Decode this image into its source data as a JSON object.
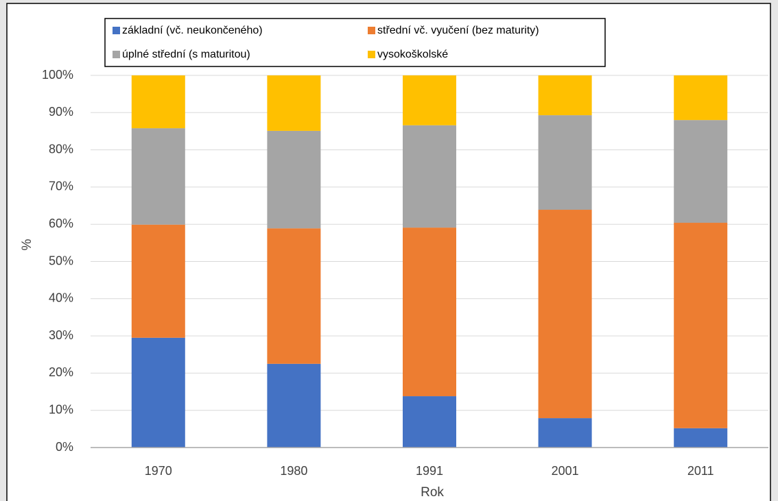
{
  "chart_data": {
    "type": "stacked-bar",
    "x_label": "Rok",
    "y_label": "%",
    "categories": [
      "1970",
      "1980",
      "1991",
      "2001",
      "2011"
    ],
    "series": [
      {
        "name": "základní (vč. neukončeného)",
        "color": "#4472c4",
        "values": [
          29.5,
          22.5,
          13.8,
          7.9,
          5.2
        ]
      },
      {
        "name": "střední vč. vyučení (bez maturity)",
        "color": "#ed7d31",
        "values": [
          30.4,
          36.4,
          45.3,
          56.0,
          55.2
        ]
      },
      {
        "name": "úplné střední (s maturitou)",
        "color": "#a5a5a5",
        "values": [
          25.9,
          26.2,
          27.5,
          25.4,
          27.6
        ]
      },
      {
        "name": "vysokoškolské",
        "color": "#ffc000",
        "values": [
          14.2,
          14.9,
          13.4,
          10.7,
          12.0
        ]
      }
    ],
    "ylim": [
      0,
      100
    ],
    "yticks": [
      {
        "value": 0,
        "label": "0%"
      },
      {
        "value": 10,
        "label": "10%"
      },
      {
        "value": 20,
        "label": "20%"
      },
      {
        "value": 30,
        "label": "30%"
      },
      {
        "value": 40,
        "label": "40%"
      },
      {
        "value": 50,
        "label": "50%"
      },
      {
        "value": 60,
        "label": "60%"
      },
      {
        "value": 70,
        "label": "70%"
      },
      {
        "value": 80,
        "label": "80%"
      },
      {
        "value": 90,
        "label": "90%"
      },
      {
        "value": 100,
        "label": "100%"
      }
    ],
    "grid": true
  }
}
